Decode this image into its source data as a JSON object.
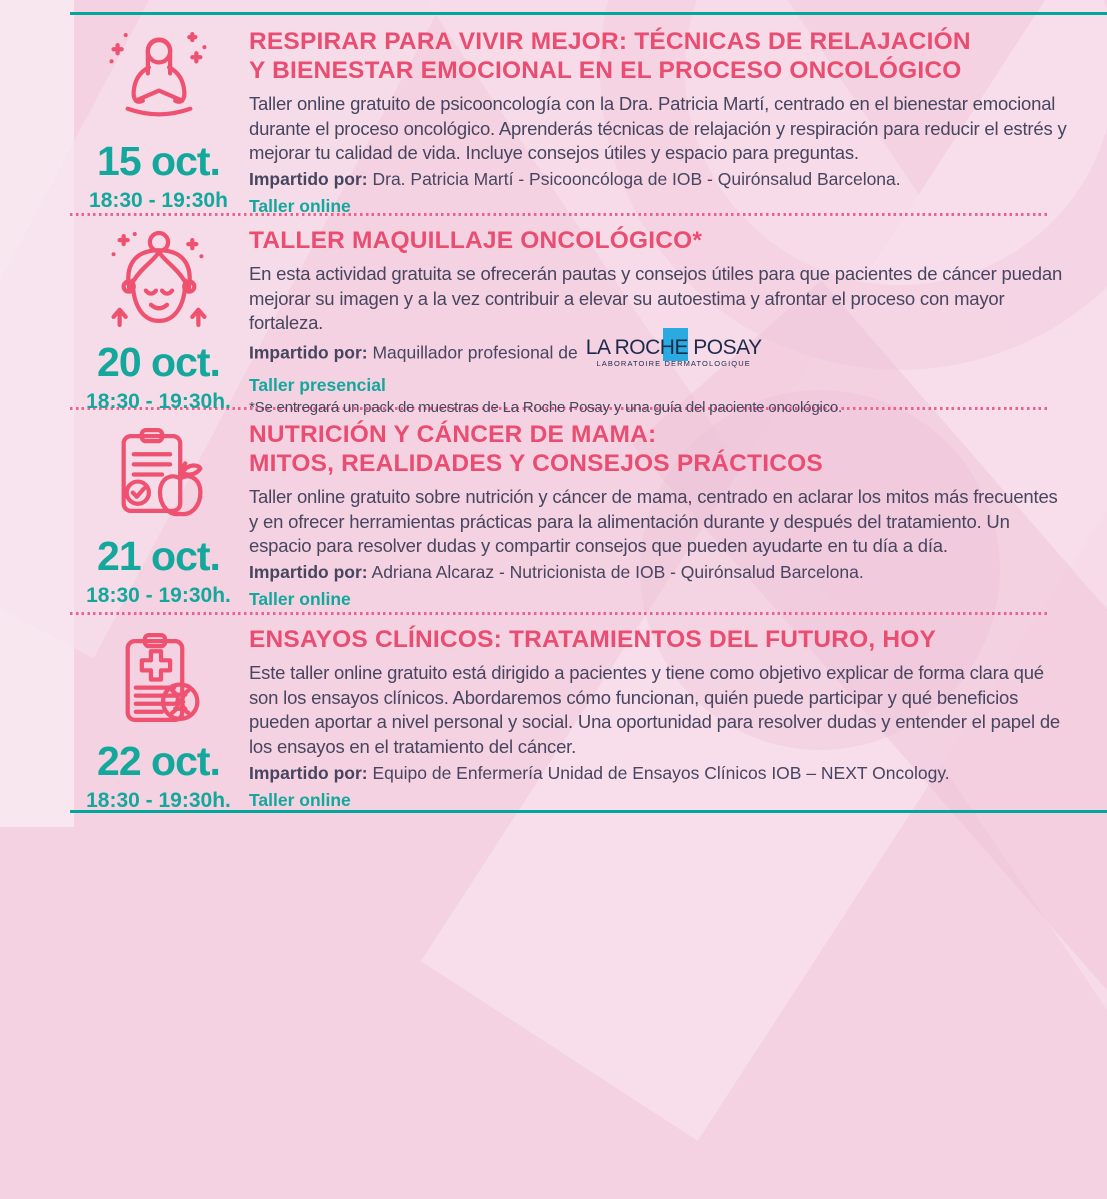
{
  "page": {
    "accent_pink": "#e94d71",
    "accent_teal": "#14a79c",
    "body_text_color": "#474560",
    "separator_color": "#e8648b"
  },
  "events": [
    {
      "icon": "meditation-woman-icon",
      "date": "15 oct.",
      "time": "18:30 - 19:30h",
      "title_lines": [
        "RESPIRAR PARA VIVIR MEJOR: TÉCNICAS DE RELAJACIÓN",
        "Y BIENESTAR EMOCIONAL EN EL PROCESO ONCOLÓGICO"
      ],
      "description": "Taller online gratuito de psicooncología con la Dra. Patricia Martí, centrado en el bienestar emocional durante el proceso oncológico. Aprenderás técnicas de relajación y respiración para reducir el estrés y mejorar tu calidad de vida. Incluye consejos útiles y espacio para preguntas.",
      "impartido_label": "Impartido por:",
      "impartido_text": "Dra. Patricia Martí - Psicooncóloga de IOB - Quirónsalud Barcelona.",
      "mode": "Taller online"
    },
    {
      "icon": "makeup-face-icon",
      "date": "20 oct.",
      "time": "18:30 - 19:30h.",
      "title_lines": [
        "TALLER MAQUILLAJE ONCOLÓGICO*"
      ],
      "description": "En esta actividad gratuita se ofrecerán pautas y consejos útiles para que pacientes de cáncer puedan mejorar su imagen y a la vez contribuir a elevar su autoestima y afrontar el proceso con mayor fortaleza.",
      "impartido_label": "Impartido por:",
      "impartido_text": "Maquillador profesional de",
      "logo": {
        "name": "la-roche-posay-logo",
        "line1": "LA ROCHE POSAY",
        "line2": "LABORATOIRE DERMATOLOGIQUE"
      },
      "mode": "Taller presencial",
      "footnote": "*Se entregará un pack de muestras de La Roche Posay y una guía del paciente oncológico."
    },
    {
      "icon": "nutrition-clipboard-apple-icon",
      "date": "21 oct.",
      "time": "18:30 - 19:30h.",
      "title_lines": [
        "NUTRICIÓN Y CÁNCER DE MAMA:",
        "MITOS, REALIDADES Y CONSEJOS PRÁCTICOS"
      ],
      "description": "Taller online gratuito sobre nutrición y cáncer de mama, centrado en aclarar los mitos más frecuentes y en ofrecer herramientas prácticas para la alimentación durante y después del tratamiento. Un espacio para resolver dudas y compartir consejos que pueden ayudarte en tu día a día.",
      "impartido_label": "Impartido por:",
      "impartido_text": "Adriana Alcaraz - Nutricionista de IOB - Quirónsalud Barcelona.",
      "mode": "Taller online"
    },
    {
      "icon": "clinical-trials-clipboard-dna-icon",
      "date": "22 oct.",
      "time": "18:30 - 19:30h.",
      "title_lines": [
        "ENSAYOS CLÍNICOS: TRATAMIENTOS DEL FUTURO, HOY"
      ],
      "description": "Este taller online gratuito está dirigido a pacientes y tiene como objetivo explicar de forma clara qué son los ensayos clínicos. Abordaremos cómo funcionan, quién puede participar y qué beneficios pueden aportar a nivel personal y social. Una oportunidad para resolver dudas y entender el papel de los ensayos en el tratamiento del cáncer.",
      "impartido_label": "Impartido por:",
      "impartido_text": "Equipo de Enfermería Unidad de Ensayos Clínicos IOB – NEXT Oncology.",
      "mode": "Taller online"
    }
  ]
}
